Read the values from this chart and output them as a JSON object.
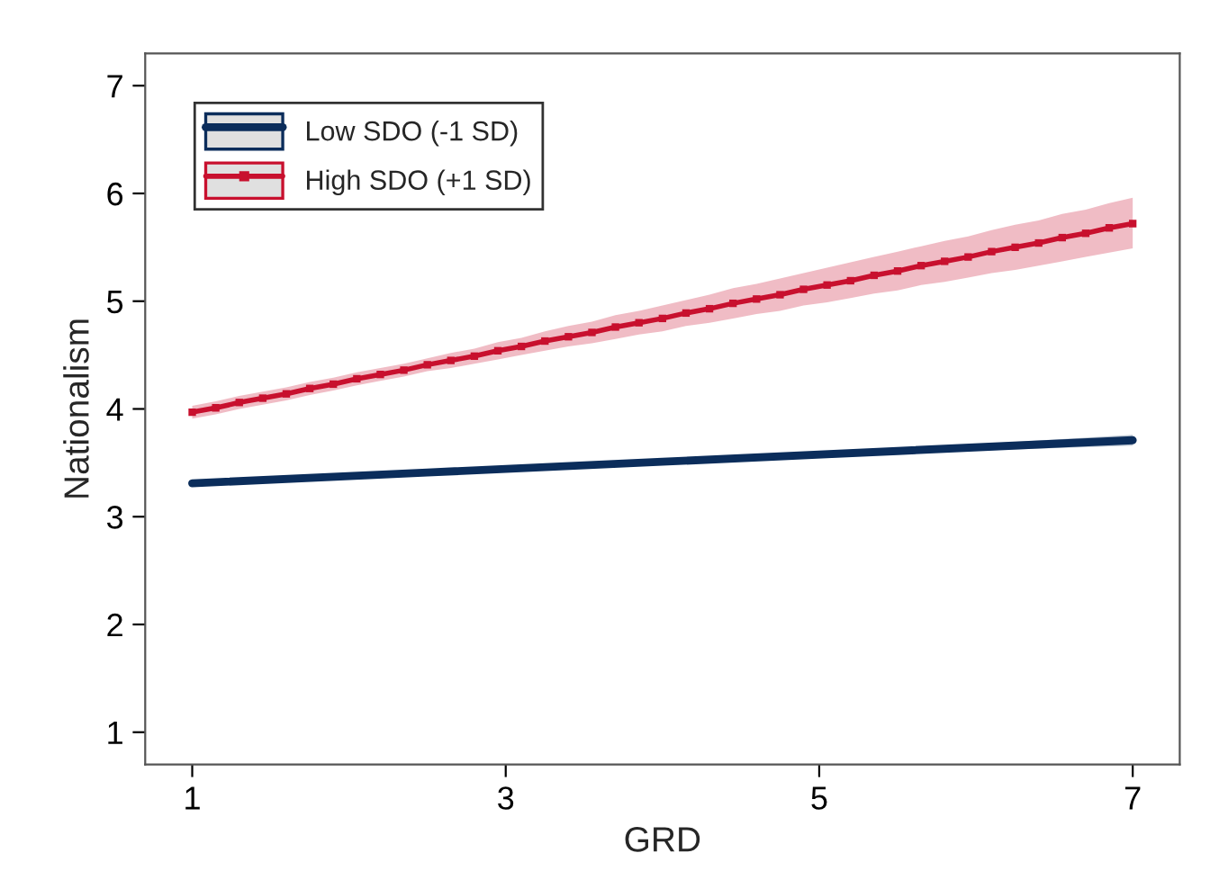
{
  "chart_data": {
    "type": "line",
    "xlabel": "GRD",
    "ylabel": "Nationalism",
    "xlim": [
      0.7,
      7.3
    ],
    "ylim": [
      0.7,
      7.3
    ],
    "xticks": [
      1,
      3,
      5,
      7
    ],
    "yticks": [
      1,
      2,
      3,
      4,
      5,
      6,
      7
    ],
    "grid": false,
    "legend": "top left",
    "series": [
      {
        "name": "Low SDO (-1 SD)",
        "color": "#0b2d5b",
        "marker": "none",
        "x": [
          1,
          2.5,
          4,
          5.5,
          7
        ],
        "values": [
          3.31,
          3.41,
          3.51,
          3.61,
          3.71
        ],
        "lower": [
          3.3,
          3.4,
          3.5,
          3.59,
          3.66
        ],
        "upper": [
          3.32,
          3.42,
          3.52,
          3.63,
          3.76
        ]
      },
      {
        "name": "High SDO (+1 SD)",
        "color": "#c8102e",
        "marker": "square",
        "x": [
          1,
          1.15,
          1.3,
          1.45,
          1.6,
          1.75,
          1.9,
          2.05,
          2.2,
          2.35,
          2.5,
          2.65,
          2.8,
          2.95,
          3.1,
          3.25,
          3.4,
          3.55,
          3.7,
          3.85,
          4,
          4.15,
          4.3,
          4.45,
          4.6,
          4.75,
          4.9,
          5.05,
          5.2,
          5.35,
          5.5,
          5.65,
          5.8,
          5.95,
          6.1,
          6.25,
          6.4,
          6.55,
          6.7,
          6.85,
          7
        ],
        "values": [
          3.97,
          4.01,
          4.06,
          4.1,
          4.14,
          4.19,
          4.23,
          4.28,
          4.32,
          4.36,
          4.41,
          4.45,
          4.49,
          4.54,
          4.58,
          4.63,
          4.67,
          4.71,
          4.76,
          4.8,
          4.84,
          4.89,
          4.93,
          4.98,
          5.02,
          5.06,
          5.11,
          5.15,
          5.19,
          5.24,
          5.28,
          5.33,
          5.37,
          5.41,
          5.46,
          5.5,
          5.54,
          5.59,
          5.63,
          5.68,
          5.72
        ],
        "lower": [
          3.91,
          3.95,
          4.0,
          4.04,
          4.08,
          4.13,
          4.17,
          4.22,
          4.26,
          4.3,
          4.35,
          4.38,
          4.42,
          4.46,
          4.5,
          4.54,
          4.58,
          4.61,
          4.65,
          4.69,
          4.72,
          4.77,
          4.8,
          4.84,
          4.88,
          4.91,
          4.96,
          4.99,
          5.03,
          5.07,
          5.1,
          5.15,
          5.18,
          5.22,
          5.26,
          5.29,
          5.33,
          5.37,
          5.41,
          5.45,
          5.49
        ],
        "upper": [
          4.03,
          4.07,
          4.12,
          4.16,
          4.2,
          4.25,
          4.29,
          4.34,
          4.38,
          4.42,
          4.47,
          4.52,
          4.56,
          4.62,
          4.66,
          4.72,
          4.77,
          4.81,
          4.87,
          4.91,
          4.96,
          5.01,
          5.06,
          5.12,
          5.16,
          5.21,
          5.26,
          5.31,
          5.36,
          5.41,
          5.46,
          5.51,
          5.56,
          5.6,
          5.66,
          5.71,
          5.75,
          5.81,
          5.85,
          5.91,
          5.96
        ]
      }
    ]
  }
}
